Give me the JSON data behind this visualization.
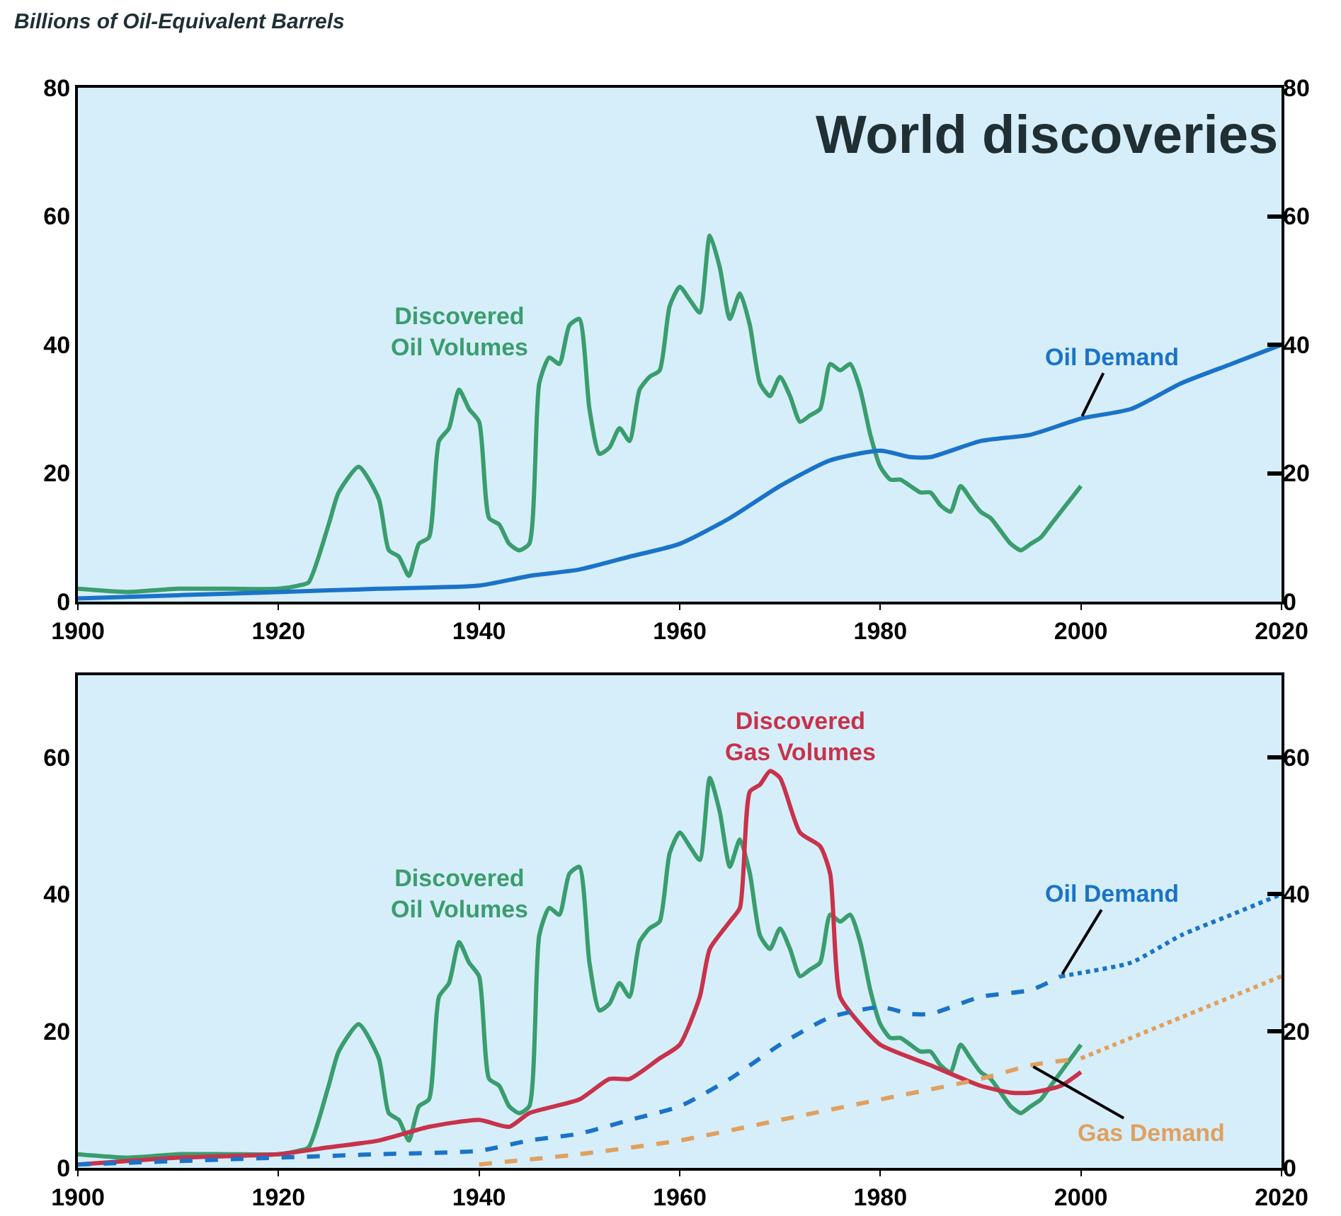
{
  "chart_data": [
    {
      "type": "line",
      "title": "World discoveries",
      "subtitle": "Billions of Oil-Equivalent Barrels",
      "xlim": [
        1900,
        2020
      ],
      "xticks": [
        1900,
        1920,
        1940,
        1960,
        1980,
        2000,
        2020
      ],
      "ylim": [
        0,
        80
      ],
      "yticks": [
        0,
        20,
        40,
        60,
        80
      ],
      "y2lim": [
        0,
        80
      ],
      "y2ticks": [
        0,
        20,
        40,
        60,
        80
      ],
      "series": [
        {
          "name": "Discovered Oil Volumes",
          "color": "#3a9d6e",
          "x": [
            1900,
            1905,
            1910,
            1915,
            1920,
            1922,
            1923,
            1925,
            1926,
            1928,
            1930,
            1931,
            1932,
            1933,
            1934,
            1935,
            1936,
            1937,
            1938,
            1939,
            1940,
            1941,
            1942,
            1943,
            1944,
            1945,
            1946,
            1947,
            1948,
            1949,
            1950,
            1951,
            1952,
            1953,
            1954,
            1955,
            1956,
            1957,
            1958,
            1959,
            1960,
            1961,
            1962,
            1963,
            1964,
            1965,
            1966,
            1967,
            1968,
            1969,
            1970,
            1971,
            1972,
            1973,
            1974,
            1975,
            1976,
            1977,
            1978,
            1979,
            1980,
            1981,
            1982,
            1983,
            1984,
            1985,
            1986,
            1987,
            1988,
            1989,
            1990,
            1991,
            1992,
            1993,
            1994,
            1995,
            1996,
            1997,
            1998,
            1999,
            2000
          ],
          "values": [
            2,
            1.5,
            2,
            2,
            2,
            2.5,
            3,
            12,
            17,
            21,
            16,
            8,
            7,
            4,
            9,
            10,
            25,
            27,
            33,
            30,
            28,
            13,
            12,
            9,
            8,
            9,
            34,
            38,
            37,
            43,
            44,
            30,
            23,
            24,
            27,
            25,
            33,
            35,
            36,
            46,
            49,
            47,
            45,
            57,
            52,
            44,
            48,
            43,
            34,
            32,
            35,
            32,
            28,
            29,
            30,
            37,
            36,
            37,
            33,
            26,
            21,
            19,
            19,
            18,
            17,
            17,
            15,
            14,
            18,
            16,
            14,
            13,
            11,
            9,
            8,
            9,
            10,
            12,
            14,
            16,
            18
          ]
        },
        {
          "name": "Oil Demand",
          "color": "#1a73c8",
          "x": [
            1900,
            1910,
            1920,
            1930,
            1940,
            1945,
            1950,
            1955,
            1960,
            1965,
            1970,
            1975,
            1980,
            1983,
            1985,
            1990,
            1995,
            2000,
            2005,
            2010,
            2015,
            2020
          ],
          "values": [
            0.5,
            1,
            1.5,
            2,
            2.5,
            4,
            5,
            7,
            9,
            13,
            18,
            22,
            23.5,
            22.5,
            22.5,
            25,
            26,
            28.5,
            30,
            34,
            37,
            40
          ]
        }
      ]
    },
    {
      "type": "line",
      "xlim": [
        1900,
        2020
      ],
      "xticks": [
        1900,
        1920,
        1940,
        1960,
        1980,
        2000,
        2020
      ],
      "ylim": [
        0,
        72
      ],
      "yticks": [
        0,
        20,
        40,
        60
      ],
      "y2lim": [
        0,
        72
      ],
      "y2ticks": [
        0,
        20,
        40,
        60
      ],
      "series": [
        {
          "name": "Discovered Oil Volumes",
          "color": "#3a9d6e",
          "x": [
            1900,
            1905,
            1910,
            1915,
            1920,
            1922,
            1923,
            1925,
            1926,
            1928,
            1930,
            1931,
            1932,
            1933,
            1934,
            1935,
            1936,
            1937,
            1938,
            1939,
            1940,
            1941,
            1942,
            1943,
            1944,
            1945,
            1946,
            1947,
            1948,
            1949,
            1950,
            1951,
            1952,
            1953,
            1954,
            1955,
            1956,
            1957,
            1958,
            1959,
            1960,
            1961,
            1962,
            1963,
            1964,
            1965,
            1966,
            1967,
            1968,
            1969,
            1970,
            1971,
            1972,
            1973,
            1974,
            1975,
            1976,
            1977,
            1978,
            1979,
            1980,
            1981,
            1982,
            1983,
            1984,
            1985,
            1986,
            1987,
            1988,
            1989,
            1990,
            1991,
            1992,
            1993,
            1994,
            1995,
            1996,
            1997,
            1998,
            1999,
            2000
          ],
          "values": [
            2,
            1.5,
            2,
            2,
            2,
            2.5,
            3,
            12,
            17,
            21,
            16,
            8,
            7,
            4,
            9,
            10,
            25,
            27,
            33,
            30,
            28,
            13,
            12,
            9,
            8,
            9,
            34,
            38,
            37,
            43,
            44,
            30,
            23,
            24,
            27,
            25,
            33,
            35,
            36,
            46,
            49,
            47,
            45,
            57,
            52,
            44,
            48,
            43,
            34,
            32,
            35,
            32,
            28,
            29,
            30,
            37,
            36,
            37,
            33,
            26,
            21,
            19,
            19,
            18,
            17,
            17,
            15,
            14,
            18,
            16,
            14,
            13,
            11,
            9,
            8,
            9,
            10,
            12,
            14,
            16,
            18
          ]
        },
        {
          "name": "Discovered Gas Volumes",
          "color": "#c8324b",
          "x": [
            1900,
            1905,
            1910,
            1920,
            1925,
            1930,
            1935,
            1940,
            1943,
            1945,
            1950,
            1953,
            1955,
            1958,
            1960,
            1962,
            1963,
            1965,
            1966,
            1967,
            1968,
            1969,
            1970,
            1972,
            1974,
            1975,
            1976,
            1978,
            1980,
            1985,
            1990,
            1993,
            1995,
            1998,
            2000
          ],
          "values": [
            0.5,
            1,
            1.5,
            2,
            3,
            4,
            6,
            7,
            6,
            8,
            10,
            13,
            13,
            16,
            18,
            25,
            32,
            36,
            38,
            55,
            56,
            58,
            57,
            49,
            47,
            43,
            25,
            21,
            18,
            15,
            12,
            11,
            11,
            12,
            14
          ]
        },
        {
          "name": "Oil Demand",
          "color": "#1a73c8",
          "line_style": "dashed",
          "x": [
            1900,
            1910,
            1920,
            1930,
            1940,
            1945,
            1950,
            1955,
            1960,
            1965,
            1970,
            1975,
            1980,
            1983,
            1985,
            1990,
            1995,
            1998
          ],
          "values": [
            0.5,
            1,
            1.5,
            2,
            2.5,
            4,
            5,
            7,
            9,
            13,
            18,
            22,
            23.5,
            22.5,
            22.5,
            25,
            26,
            28
          ]
        },
        {
          "color": "#1a73c8",
          "line_style": "dotted",
          "x": [
            1998,
            2000,
            2005,
            2010,
            2015,
            2020
          ],
          "values": [
            28,
            28.5,
            30,
            34,
            37,
            40
          ]
        },
        {
          "name": "Gas Demand",
          "color": "#e0a060",
          "line_style": "dashed",
          "x": [
            1940,
            1950,
            1960,
            1970,
            1980,
            1990,
            1995,
            2000
          ],
          "values": [
            0.5,
            2,
            4,
            7,
            10,
            13,
            15,
            16
          ]
        },
        {
          "color": "#e0a060",
          "line_style": "dotted",
          "x": [
            2000,
            2010,
            2020
          ],
          "values": [
            16,
            22,
            28
          ]
        }
      ]
    }
  ]
}
